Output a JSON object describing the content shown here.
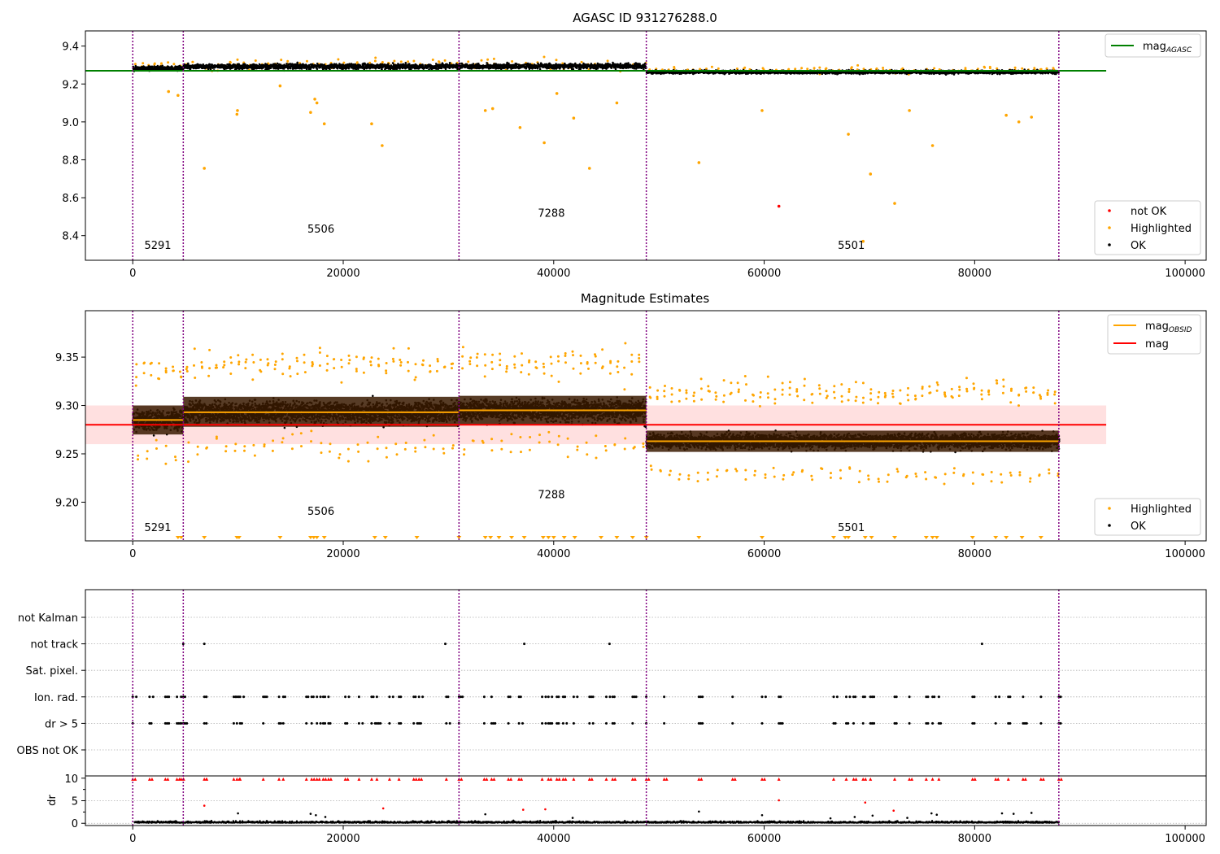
{
  "chart_data": [
    {
      "type": "scatter",
      "title": "AGASC ID 931276288.0",
      "xlim": [
        -4500,
        102000
      ],
      "ylim": [
        8.27,
        9.48
      ],
      "xticks": [
        0,
        20000,
        40000,
        60000,
        80000,
        100000
      ],
      "yticks": [
        8.4,
        8.6,
        8.8,
        9.0,
        9.2,
        9.4
      ],
      "ytick_labels": [
        "8.4",
        "8.6",
        "8.8",
        "9.0",
        "9.2",
        "9.4"
      ],
      "obs_boundaries": [
        0,
        4800,
        31000,
        48800,
        88000
      ],
      "obsid_labels": [
        {
          "text": "5291",
          "x": 1100,
          "y": 8.33
        },
        {
          "text": "5506",
          "x": 16600,
          "y": 8.415
        },
        {
          "text": "7288",
          "x": 38500,
          "y": 8.5
        },
        {
          "text": "5501",
          "x": 67000,
          "y": 8.33
        }
      ],
      "mag_agasc": 9.27,
      "segments": [
        {
          "x0": 0,
          "x1": 4800,
          "mean": 9.283,
          "spread": 0.02
        },
        {
          "x0": 4800,
          "x1": 31000,
          "mean": 9.292,
          "spread": 0.022
        },
        {
          "x0": 31000,
          "x1": 48800,
          "mean": 9.294,
          "spread": 0.022
        },
        {
          "x0": 48800,
          "x1": 88000,
          "mean": 9.263,
          "spread": 0.014
        }
      ],
      "highlighted_outliers": [
        {
          "x": 3400,
          "y": 9.16
        },
        {
          "x": 4300,
          "y": 9.14
        },
        {
          "x": 6800,
          "y": 8.755
        },
        {
          "x": 9900,
          "y": 9.04
        },
        {
          "x": 9950,
          "y": 9.06
        },
        {
          "x": 14000,
          "y": 9.19
        },
        {
          "x": 16900,
          "y": 9.05
        },
        {
          "x": 17300,
          "y": 9.12
        },
        {
          "x": 17500,
          "y": 9.1
        },
        {
          "x": 18200,
          "y": 8.99
        },
        {
          "x": 22700,
          "y": 8.99
        },
        {
          "x": 23700,
          "y": 8.875
        },
        {
          "x": 33500,
          "y": 9.06
        },
        {
          "x": 34200,
          "y": 9.07
        },
        {
          "x": 36800,
          "y": 8.97
        },
        {
          "x": 39100,
          "y": 8.89
        },
        {
          "x": 40300,
          "y": 9.15
        },
        {
          "x": 41900,
          "y": 9.02
        },
        {
          "x": 43400,
          "y": 8.755
        },
        {
          "x": 46000,
          "y": 9.1
        },
        {
          "x": 53800,
          "y": 8.785
        },
        {
          "x": 59800,
          "y": 9.06
        },
        {
          "x": 68000,
          "y": 8.935
        },
        {
          "x": 69400,
          "y": 8.37
        },
        {
          "x": 70100,
          "y": 8.725
        },
        {
          "x": 72400,
          "y": 8.57
        },
        {
          "x": 73800,
          "y": 9.06
        },
        {
          "x": 76000,
          "y": 8.875
        },
        {
          "x": 83000,
          "y": 9.035
        },
        {
          "x": 84200,
          "y": 9.0
        },
        {
          "x": 85400,
          "y": 9.025
        }
      ],
      "not_ok_points": [
        {
          "x": 61400,
          "y": 8.555
        }
      ],
      "legend_lines": [
        {
          "name": "mag",
          "sub": "AGASC",
          "color": "#008000"
        }
      ],
      "legend_markers": [
        {
          "name": "not OK",
          "color": "#ff0000"
        },
        {
          "name": "Highlighted",
          "color": "#ffa500"
        },
        {
          "name": "OK",
          "color": "#000000"
        }
      ]
    },
    {
      "type": "scatter",
      "title": "Magnitude Estimates",
      "xlim": [
        -4500,
        102000
      ],
      "ylim": [
        9.16,
        9.398
      ],
      "xticks": [
        0,
        20000,
        40000,
        60000,
        80000,
        100000
      ],
      "yticks": [
        9.2,
        9.25,
        9.3,
        9.35
      ],
      "ytick_labels": [
        "9.20",
        "9.25",
        "9.30",
        "9.35"
      ],
      "obs_boundaries": [
        0,
        4800,
        31000,
        48800,
        88000
      ],
      "obsid_labels": [
        {
          "text": "5291",
          "x": 1100,
          "y": 9.17
        },
        {
          "text": "5506",
          "x": 16600,
          "y": 9.187
        },
        {
          "text": "7288",
          "x": 38500,
          "y": 9.204
        },
        {
          "text": "5501",
          "x": 67000,
          "y": 9.17
        }
      ],
      "mag": 9.28,
      "mag_band": [
        9.26,
        9.3
      ],
      "segments": [
        {
          "x0": 0,
          "x1": 4800,
          "mean": 9.285,
          "band": [
            9.27,
            9.3
          ],
          "spread": 0.016
        },
        {
          "x0": 4800,
          "x1": 31000,
          "mean": 9.293,
          "band": [
            9.278,
            9.309
          ],
          "spread": 0.017
        },
        {
          "x0": 31000,
          "x1": 48800,
          "mean": 9.295,
          "band": [
            9.28,
            9.31
          ],
          "spread": 0.017
        },
        {
          "x0": 48800,
          "x1": 88000,
          "mean": 9.263,
          "band": [
            9.252,
            9.274
          ],
          "spread": 0.012
        }
      ],
      "legend_lines": [
        {
          "name": "mag",
          "sub": "OBSID",
          "color": "#ffa500"
        },
        {
          "name": "mag",
          "sub": "",
          "color": "#ff0000"
        }
      ],
      "legend_markers": [
        {
          "name": "Highlighted",
          "color": "#ffa500"
        },
        {
          "name": "OK",
          "color": "#000000"
        }
      ]
    },
    {
      "type": "scatter",
      "xlim": [
        -4500,
        102000
      ],
      "xticks": [
        0,
        20000,
        40000,
        60000,
        80000,
        100000
      ],
      "obs_boundaries": [
        0,
        4800,
        31000,
        48800,
        88000
      ],
      "flag_categories": [
        "OBS not OK",
        "dr > 5",
        "Ion. rad.",
        "Sat. pixel.",
        "not track",
        "not Kalman"
      ],
      "flag_events_x": [
        0,
        1600,
        3100,
        4200,
        4600,
        4800,
        6800,
        7000,
        9600,
        9900,
        10200,
        12400,
        13900,
        14300,
        16500,
        17000,
        17500,
        18100,
        18600,
        20200,
        21500,
        22700,
        23200,
        24400,
        25300,
        26700,
        27200,
        29800,
        31000,
        33400,
        34100,
        35700,
        36700,
        38900,
        39500,
        40300,
        40900,
        41900,
        43400,
        45000,
        45600,
        47500,
        48800,
        50500,
        53800,
        57000,
        59800,
        61400,
        66600,
        67800,
        68500,
        69400,
        70100,
        72400,
        73800,
        75400,
        76000,
        76600,
        79800,
        82000,
        83200,
        84600,
        86300,
        88000
      ],
      "not_track_x": [
        4800,
        6800,
        29700,
        37200,
        45300,
        80700
      ],
      "dr_ylim": [
        -0.5,
        10.5
      ],
      "dr_yticks": [
        0,
        5,
        10
      ],
      "dr_ylabel": "dr",
      "dr_high_value": 9.7,
      "dr_scattered": [
        {
          "x": 6800,
          "y": 3.9,
          "c": "red"
        },
        {
          "x": 10000,
          "y": 2.2,
          "c": "black"
        },
        {
          "x": 16900,
          "y": 2.1,
          "c": "black"
        },
        {
          "x": 17400,
          "y": 1.8,
          "c": "black"
        },
        {
          "x": 18300,
          "y": 1.4,
          "c": "black"
        },
        {
          "x": 23800,
          "y": 3.3,
          "c": "red"
        },
        {
          "x": 33500,
          "y": 2.0,
          "c": "black"
        },
        {
          "x": 37100,
          "y": 3.0,
          "c": "red"
        },
        {
          "x": 39200,
          "y": 3.1,
          "c": "red"
        },
        {
          "x": 41800,
          "y": 1.2,
          "c": "black"
        },
        {
          "x": 53800,
          "y": 2.6,
          "c": "black"
        },
        {
          "x": 59800,
          "y": 1.8,
          "c": "black"
        },
        {
          "x": 61400,
          "y": 5.1,
          "c": "red"
        },
        {
          "x": 66300,
          "y": 1.1,
          "c": "black"
        },
        {
          "x": 68600,
          "y": 1.4,
          "c": "black"
        },
        {
          "x": 69600,
          "y": 4.6,
          "c": "red"
        },
        {
          "x": 70300,
          "y": 1.7,
          "c": "black"
        },
        {
          "x": 72300,
          "y": 2.8,
          "c": "red"
        },
        {
          "x": 73600,
          "y": 1.2,
          "c": "black"
        },
        {
          "x": 75900,
          "y": 2.2,
          "c": "black"
        },
        {
          "x": 76400,
          "y": 1.9,
          "c": "black"
        },
        {
          "x": 82600,
          "y": 2.2,
          "c": "black"
        },
        {
          "x": 83700,
          "y": 2.1,
          "c": "black"
        },
        {
          "x": 85400,
          "y": 2.3,
          "c": "black"
        }
      ]
    }
  ]
}
